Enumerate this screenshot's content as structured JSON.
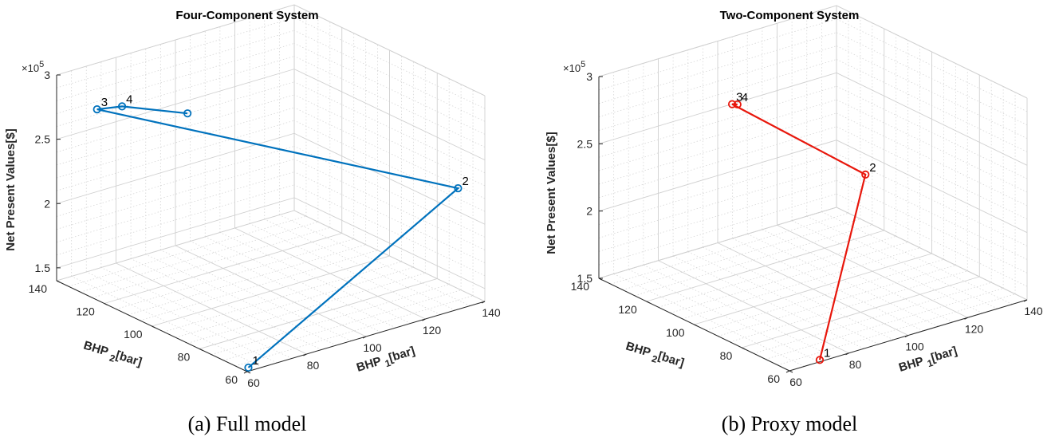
{
  "figure": {
    "captions": [
      "(a) Full model",
      "(b) Proxy model"
    ]
  },
  "chart_data": [
    {
      "type": "line3d",
      "title": "Four-Component System",
      "xlabel": "BHP 1 [bar]",
      "ylabel": "BHP 2 [bar]",
      "zlabel": "Net Present Values[$]",
      "z_multiplier": "×10^5",
      "xlim": [
        60,
        140
      ],
      "ylim": [
        60,
        140
      ],
      "zlim": [
        1.4,
        3
      ],
      "x_ticks": [
        60,
        80,
        100,
        120,
        140
      ],
      "y_ticks": [
        60,
        80,
        100,
        120,
        140
      ],
      "z_ticks": [
        1.5,
        2,
        2.5,
        3
      ],
      "grid": true,
      "series": [
        {
          "color": "#0072bd",
          "marker": "circle",
          "points": [
            {
              "label": "1",
              "x": 62,
              "y": 62,
              "z": 1.4
            },
            {
              "label": "2",
              "x": 135,
              "y": 65,
              "z": 2.27
            },
            {
              "label": "3",
              "x": 68,
              "y": 133,
              "z": 2.74
            },
            {
              "label": "4",
              "x": 70,
              "y": 125,
              "z": 2.82
            },
            {
              "label": "",
              "x": 80,
              "y": 110,
              "z": 2.83
            }
          ]
        }
      ]
    },
    {
      "type": "line3d",
      "title": "Two-Component System",
      "xlabel": "BHP 1 [bar]",
      "ylabel": "BHP 2 [bar]",
      "zlabel": "Net Present Values[$]",
      "z_multiplier": "×10^5",
      "xlim": [
        60,
        140
      ],
      "ylim": [
        60,
        140
      ],
      "zlim": [
        1.5,
        3
      ],
      "x_ticks": [
        60,
        80,
        100,
        120,
        140
      ],
      "y_ticks": [
        60,
        80,
        100,
        120,
        140
      ],
      "z_ticks": [
        1.5,
        2,
        2.5,
        3
      ],
      "grid": true,
      "series": [
        {
          "color": "#e8170c",
          "marker": "circle",
          "points": [
            {
              "label": "1",
              "x": 71,
              "y": 61,
              "z": 1.5
            },
            {
              "label": "2",
              "x": 96,
              "y": 73,
              "z": 2.61
            },
            {
              "label": "3",
              "x": 84,
              "y": 114,
              "z": 2.86
            },
            {
              "label": "4",
              "x": 85,
              "y": 113,
              "z": 2.86
            }
          ]
        }
      ]
    }
  ]
}
